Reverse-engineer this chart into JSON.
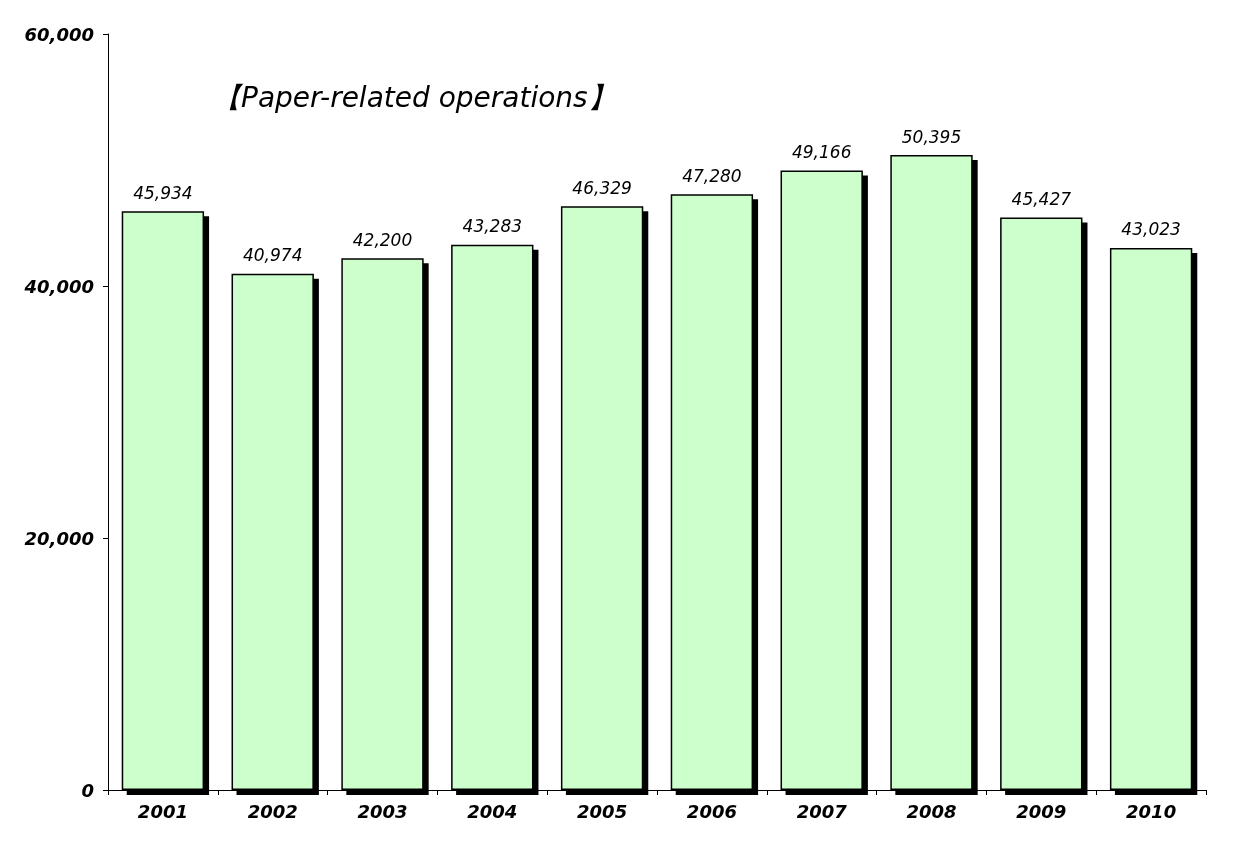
{
  "chart_data": {
    "type": "bar",
    "title": "【Paper-related operations】",
    "categories": [
      "2001",
      "2002",
      "2003",
      "2004",
      "2005",
      "2006",
      "2007",
      "2008",
      "2009",
      "2010"
    ],
    "values": [
      45934,
      40974,
      42200,
      43283,
      46329,
      47280,
      49166,
      50395,
      45427,
      43023
    ],
    "color": "#ccffcc",
    "ylim": [
      0,
      60000
    ],
    "yticks": [
      {
        "value": 0,
        "label": "0"
      },
      {
        "value": 20000,
        "label": "20,000"
      },
      {
        "value": 40000,
        "label": "40,000"
      },
      {
        "value": 60000,
        "label": "60,000"
      }
    ],
    "value_labels": [
      "45,934",
      "40,974",
      "42,200",
      "43,283",
      "46,329",
      "47,280",
      "49,166",
      "50,395",
      "45,427",
      "43,023"
    ],
    "grid": false
  }
}
